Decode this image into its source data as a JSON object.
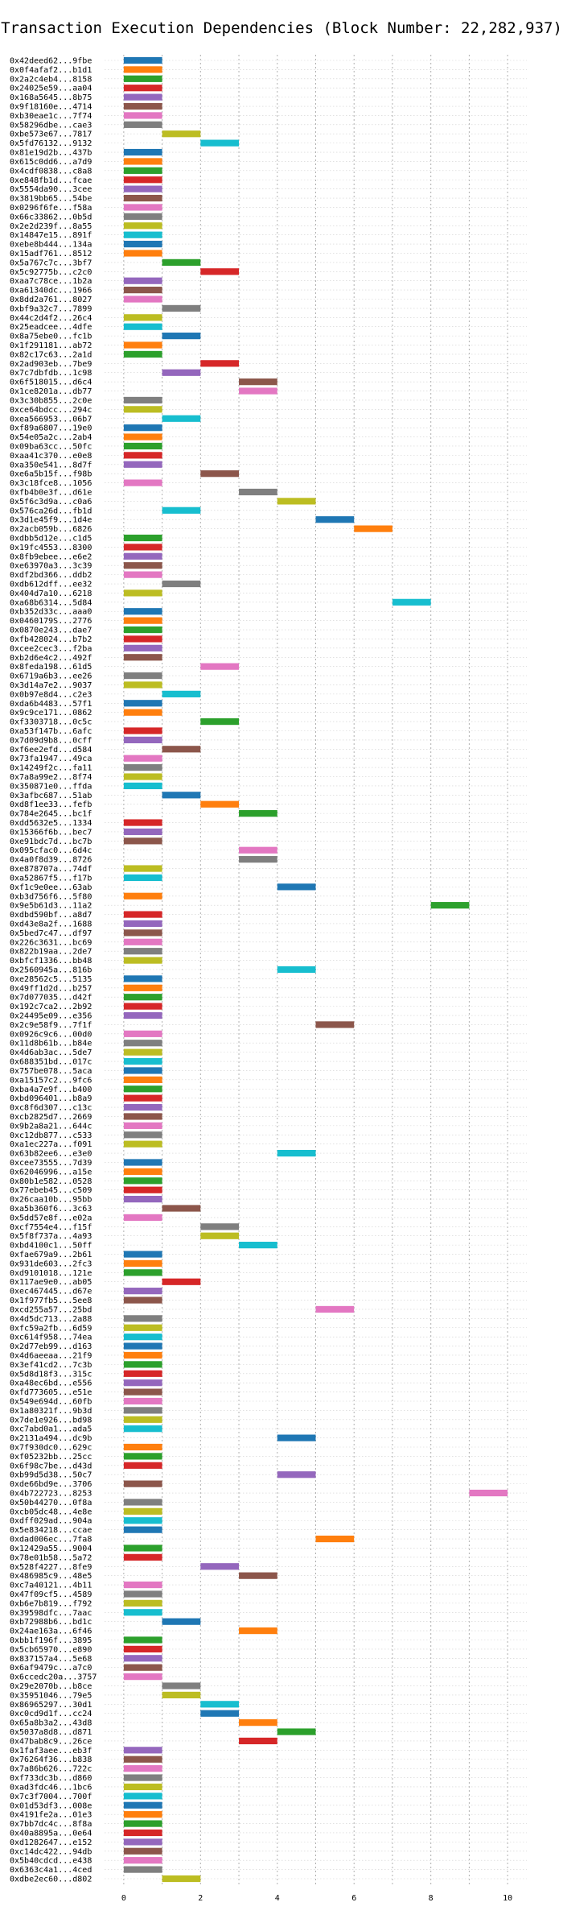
{
  "chart_data": {
    "type": "bar",
    "orientation": "horizontal-gantt",
    "title": "Transaction Execution Dependencies (Block Number: 22,282,937)",
    "xlabel": "",
    "ylabel": "",
    "xlim": [
      -0.5,
      10.5
    ],
    "xticks": [
      0,
      2,
      4,
      6,
      8,
      10
    ],
    "grid": true,
    "palette": [
      "#1f77b4",
      "#ff7f0e",
      "#2ca02c",
      "#d62728",
      "#9467bd",
      "#8c564b",
      "#e377c2",
      "#7f7f7f",
      "#bcbd22",
      "#17becf"
    ],
    "transactions": [
      {
        "hash": "0x42deed62...9fbe",
        "start": 0
      },
      {
        "hash": "0x0f4afaf2...b1d1",
        "start": 0
      },
      {
        "hash": "0x2a2c4eb4...8158",
        "start": 0
      },
      {
        "hash": "0x24025e59...aa04",
        "start": 0
      },
      {
        "hash": "0x168a5645...8b75",
        "start": 0
      },
      {
        "hash": "0x9f18160e...4714",
        "start": 0
      },
      {
        "hash": "0xb30eae1c...7f74",
        "start": 0
      },
      {
        "hash": "0x58296dbe...cae3",
        "start": 0
      },
      {
        "hash": "0xbe573e67...7817",
        "start": 1
      },
      {
        "hash": "0x5fd76132...9132",
        "start": 2
      },
      {
        "hash": "0x81e19d2b...437b",
        "start": 0
      },
      {
        "hash": "0x615c0dd6...a7d9",
        "start": 0
      },
      {
        "hash": "0x4cdf0838...c8a8",
        "start": 0
      },
      {
        "hash": "0xe848fb1d...fcae",
        "start": 0
      },
      {
        "hash": "0x5554da90...3cee",
        "start": 0
      },
      {
        "hash": "0x3819bb65...54be",
        "start": 0
      },
      {
        "hash": "0x0296f6fe...f58a",
        "start": 0
      },
      {
        "hash": "0x66c33862...0b5d",
        "start": 0
      },
      {
        "hash": "0x2e2d239f...8a55",
        "start": 0
      },
      {
        "hash": "0x14847e15...891f",
        "start": 0
      },
      {
        "hash": "0xebe8b444...134a",
        "start": 0
      },
      {
        "hash": "0x15adf761...8512",
        "start": 0
      },
      {
        "hash": "0x5a767c7c...3bf7",
        "start": 1
      },
      {
        "hash": "0x5c92775b...c2c0",
        "start": 2
      },
      {
        "hash": "0xaa7c78ce...1b2a",
        "start": 0
      },
      {
        "hash": "0xa61340dc...1966",
        "start": 0
      },
      {
        "hash": "0x8dd2a761...8027",
        "start": 0
      },
      {
        "hash": "0xbf9a32c7...7899",
        "start": 1
      },
      {
        "hash": "0x44c2d4f2...26c4",
        "start": 0
      },
      {
        "hash": "0x25eadcee...4dfe",
        "start": 0
      },
      {
        "hash": "0x8a75ebe0...fc1b",
        "start": 1
      },
      {
        "hash": "0x1f291181...ab72",
        "start": 0
      },
      {
        "hash": "0x82c17c63...2a1d",
        "start": 0
      },
      {
        "hash": "0x2ad903eb...7be9",
        "start": 2
      },
      {
        "hash": "0x7c7dbfdb...1c98",
        "start": 1
      },
      {
        "hash": "0x6f518015...d6c4",
        "start": 3
      },
      {
        "hash": "0x1ce8201a...db77",
        "start": 3
      },
      {
        "hash": "0x3c30b855...2c0e",
        "start": 0
      },
      {
        "hash": "0xce64bdcc...294c",
        "start": 0
      },
      {
        "hash": "0xea566953...06b7",
        "start": 1
      },
      {
        "hash": "0xf89a6807...19e0",
        "start": 0
      },
      {
        "hash": "0x54e05a2c...2ab4",
        "start": 0
      },
      {
        "hash": "0x09ba63cc...50fc",
        "start": 0
      },
      {
        "hash": "0xaa41c370...e0e8",
        "start": 0
      },
      {
        "hash": "0xa350e541...8d7f",
        "start": 0
      },
      {
        "hash": "0xe6a5b15f...f98b",
        "start": 2
      },
      {
        "hash": "0x3c18fce8...1056",
        "start": 0
      },
      {
        "hash": "0xfb4b0e3f...d61e",
        "start": 3
      },
      {
        "hash": "0x5f6c3d9a...c0a6",
        "start": 4
      },
      {
        "hash": "0x576ca26d...fb1d",
        "start": 1
      },
      {
        "hash": "0x3d1e45f9...1d4e",
        "start": 5
      },
      {
        "hash": "0x2acb059b...6826",
        "start": 6
      },
      {
        "hash": "0xdbb5d12e...c1d5",
        "start": 0
      },
      {
        "hash": "0x19fc4553...8300",
        "start": 0
      },
      {
        "hash": "0x8fb9ebee...e6e2",
        "start": 0
      },
      {
        "hash": "0xe63970a3...3c39",
        "start": 0
      },
      {
        "hash": "0xdf2bd366...ddb2",
        "start": 0
      },
      {
        "hash": "0xdb612dff...ee32",
        "start": 1
      },
      {
        "hash": "0x404d7a10...6218",
        "start": 0
      },
      {
        "hash": "0xa68b6314...5d84",
        "start": 7
      },
      {
        "hash": "0xb352d33c...aaa0",
        "start": 0
      },
      {
        "hash": "0x0460179S...2776",
        "start": 0
      },
      {
        "hash": "0x0870e243...dae7",
        "start": 0
      },
      {
        "hash": "0xfb428024...b7b2",
        "start": 0
      },
      {
        "hash": "0xcee2cec3...f2ba",
        "start": 0
      },
      {
        "hash": "0xb2d6e4c2...492f",
        "start": 0
      },
      {
        "hash": "0x8feda198...61d5",
        "start": 2
      },
      {
        "hash": "0x6719a6b3...ee26",
        "start": 0
      },
      {
        "hash": "0x3d14a7e2...9037",
        "start": 0
      },
      {
        "hash": "0x0b97e8d4...c2e3",
        "start": 1
      },
      {
        "hash": "0xda6b4483...57f1",
        "start": 0
      },
      {
        "hash": "0x9c9ce171...0862",
        "start": 0
      },
      {
        "hash": "0xf3303718...0c5c",
        "start": 2
      },
      {
        "hash": "0xa53f147b...6afc",
        "start": 0
      },
      {
        "hash": "0x7d09d9b8...0cff",
        "start": 0
      },
      {
        "hash": "0xf6ee2efd...d584",
        "start": 1
      },
      {
        "hash": "0x73fa1947...49ca",
        "start": 0
      },
      {
        "hash": "0x14249f2c...fa11",
        "start": 0
      },
      {
        "hash": "0x7a8a99e2...8f74",
        "start": 0
      },
      {
        "hash": "0x350871e0...ffda",
        "start": 0
      },
      {
        "hash": "0x3afbc687...51ab",
        "start": 1
      },
      {
        "hash": "0xd8f1ee33...fefb",
        "start": 2
      },
      {
        "hash": "0x784e2645...bc1f",
        "start": 3
      },
      {
        "hash": "0xdd5632e5...1334",
        "start": 0
      },
      {
        "hash": "0x15366f6b...bec7",
        "start": 0
      },
      {
        "hash": "0xe91bdc7d...bc7b",
        "start": 0
      },
      {
        "hash": "0x095cfac0...6d4c",
        "start": 3
      },
      {
        "hash": "0x4a0f8d39...8726",
        "start": 3
      },
      {
        "hash": "0xe878707a...74df",
        "start": 0
      },
      {
        "hash": "0xa52867f5...f17b",
        "start": 0
      },
      {
        "hash": "0xf1c9e0ee...63ab",
        "start": 4
      },
      {
        "hash": "0xb3d756f6...5f80",
        "start": 0
      },
      {
        "hash": "0x9e5b61d3...11a2",
        "start": 8
      },
      {
        "hash": "0xdbd590bf...a8d7",
        "start": 0
      },
      {
        "hash": "0xd43e8a2f...1688",
        "start": 0
      },
      {
        "hash": "0x5bed7c47...df97",
        "start": 0
      },
      {
        "hash": "0x226c3631...bc69",
        "start": 0
      },
      {
        "hash": "0x822b19aa...2de7",
        "start": 0
      },
      {
        "hash": "0xbfcf1336...bb48",
        "start": 0
      },
      {
        "hash": "0x2560945a...816b",
        "start": 4
      },
      {
        "hash": "0xe28562c5...5135",
        "start": 0
      },
      {
        "hash": "0x49ff1d2d...b257",
        "start": 0
      },
      {
        "hash": "0x7d077035...d42f",
        "start": 0
      },
      {
        "hash": "0x192c7ca2...2b92",
        "start": 0
      },
      {
        "hash": "0x24495e09...e356",
        "start": 0
      },
      {
        "hash": "0x2c9e58f9...7f1f",
        "start": 5
      },
      {
        "hash": "0x0926c9c6...00d0",
        "start": 0
      },
      {
        "hash": "0x11d8b61b...b84e",
        "start": 0
      },
      {
        "hash": "0x4d6ab3ac...5de7",
        "start": 0
      },
      {
        "hash": "0x688351bd...017c",
        "start": 0
      },
      {
        "hash": "0x757be078...5aca",
        "start": 0
      },
      {
        "hash": "0xa15157c2...9fc6",
        "start": 0
      },
      {
        "hash": "0xba4a7e9f...b400",
        "start": 0
      },
      {
        "hash": "0xbd096401...b8a9",
        "start": 0
      },
      {
        "hash": "0xc8f6d307...c13c",
        "start": 0
      },
      {
        "hash": "0xcb2825d7...2669",
        "start": 0
      },
      {
        "hash": "0x9b2a8a21...644c",
        "start": 0
      },
      {
        "hash": "0xc12db877...c533",
        "start": 0
      },
      {
        "hash": "0xa1ec227a...f091",
        "start": 0
      },
      {
        "hash": "0x63b82ee6...e3e0",
        "start": 4
      },
      {
        "hash": "0xcee73555...7d39",
        "start": 0
      },
      {
        "hash": "0x62046996...a15e",
        "start": 0
      },
      {
        "hash": "0x80b1e582...0528",
        "start": 0
      },
      {
        "hash": "0x77ebeb45...c509",
        "start": 0
      },
      {
        "hash": "0x26caa10b...95bb",
        "start": 0
      },
      {
        "hash": "0xa5b360f6...3c63",
        "start": 1
      },
      {
        "hash": "0x5dd57e8f...e02a",
        "start": 0
      },
      {
        "hash": "0xcf7554e4...f15f",
        "start": 2
      },
      {
        "hash": "0x5f8f737a...4a93",
        "start": 2
      },
      {
        "hash": "0xbd4100c1...50ff",
        "start": 3
      },
      {
        "hash": "0xfae679a9...2b61",
        "start": 0
      },
      {
        "hash": "0x931de603...2fc3",
        "start": 0
      },
      {
        "hash": "0xd9101018...121e",
        "start": 0
      },
      {
        "hash": "0x117ae9e0...ab05",
        "start": 1
      },
      {
        "hash": "0xec467445...d67e",
        "start": 0
      },
      {
        "hash": "0x1f977fb5...5ee8",
        "start": 0
      },
      {
        "hash": "0xcd255a57...25bd",
        "start": 5
      },
      {
        "hash": "0x4d5dc713...2a88",
        "start": 0
      },
      {
        "hash": "0xfc59a2fb...6d59",
        "start": 0
      },
      {
        "hash": "0xc614f958...74ea",
        "start": 0
      },
      {
        "hash": "0x2d77eb99...d163",
        "start": 0
      },
      {
        "hash": "0x4d6aeeaa...21f9",
        "start": 0
      },
      {
        "hash": "0x3ef41cd2...7c3b",
        "start": 0
      },
      {
        "hash": "0x5d8d18f3...315c",
        "start": 0
      },
      {
        "hash": "0xa48ec6bd...e556",
        "start": 0
      },
      {
        "hash": "0xfd773605...e51e",
        "start": 0
      },
      {
        "hash": "0x549e694d...60fb",
        "start": 0
      },
      {
        "hash": "0x1a80321f...9b3d",
        "start": 0
      },
      {
        "hash": "0x7de1e926...bd98",
        "start": 0
      },
      {
        "hash": "0xc7abd0a1...ada5",
        "start": 0
      },
      {
        "hash": "0x2131a494...dc9b",
        "start": 4
      },
      {
        "hash": "0x7f930dc0...629c",
        "start": 0
      },
      {
        "hash": "0xf05232bb...25cc",
        "start": 0
      },
      {
        "hash": "0x6f98c7be...d43d",
        "start": 0
      },
      {
        "hash": "0xb99d5d38...50c7",
        "start": 4
      },
      {
        "hash": "0xde66bd9e...3706",
        "start": 0
      },
      {
        "hash": "0x4b722723...8253",
        "start": 9
      },
      {
        "hash": "0x50b44270...0f8a",
        "start": 0
      },
      {
        "hash": "0xcb05dc48...4e8e",
        "start": 0
      },
      {
        "hash": "0xdff029ad...904a",
        "start": 0
      },
      {
        "hash": "0x5e834218...ccae",
        "start": 0
      },
      {
        "hash": "0xdad006ec...7fa8",
        "start": 5
      },
      {
        "hash": "0x12429a55...9004",
        "start": 0
      },
      {
        "hash": "0x78e01b58...5a72",
        "start": 0
      },
      {
        "hash": "0x528f4227...8fe9",
        "start": 2
      },
      {
        "hash": "0x486985c9...48e5",
        "start": 3
      },
      {
        "hash": "0xc7a40121...4b11",
        "start": 0
      },
      {
        "hash": "0x47f09cf5...4589",
        "start": 0
      },
      {
        "hash": "0xb6e7b819...f792",
        "start": 0
      },
      {
        "hash": "0x39598dfc...7aac",
        "start": 0
      },
      {
        "hash": "0xb72988b6...bd1c",
        "start": 1
      },
      {
        "hash": "0x24ae163a...6f46",
        "start": 3
      },
      {
        "hash": "0xbb1f196f...3895",
        "start": 0
      },
      {
        "hash": "0x5cb65970...e890",
        "start": 0
      },
      {
        "hash": "0x837157a4...5e68",
        "start": 0
      },
      {
        "hash": "0x6af9479c...a7c0",
        "start": 0
      },
      {
        "hash": "0x6ccedc20a...3757",
        "start": 0
      },
      {
        "hash": "0x29e2070b...b8ce",
        "start": 1
      },
      {
        "hash": "0x35951046...79e5",
        "start": 1
      },
      {
        "hash": "0x86965297...30d1",
        "start": 2
      },
      {
        "hash": "0xc0cd9d1f...cc24",
        "start": 2
      },
      {
        "hash": "0x65a8b3a2...43d8",
        "start": 3
      },
      {
        "hash": "0x5037a8d8...d871",
        "start": 4
      },
      {
        "hash": "0x47bab8c9...26ce",
        "start": 3
      },
      {
        "hash": "0x1faf3aee...eb3f",
        "start": 0
      },
      {
        "hash": "0x76264f36...b838",
        "start": 0
      },
      {
        "hash": "0x7a86b626...722c",
        "start": 0
      },
      {
        "hash": "0xf733dc3b...d860",
        "start": 0
      },
      {
        "hash": "0xad3fdc46...1bc6",
        "start": 0
      },
      {
        "hash": "0x7c3f7004...700f",
        "start": 0
      },
      {
        "hash": "0x01d53df3...008e",
        "start": 0
      },
      {
        "hash": "0x4191fe2a...01e3",
        "start": 0
      },
      {
        "hash": "0x7bb7dc4c...8f8a",
        "start": 0
      },
      {
        "hash": "0x40a8895a...0e64",
        "start": 0
      },
      {
        "hash": "0xd1282647...e152",
        "start": 0
      },
      {
        "hash": "0xc14dc422...94db",
        "start": 0
      },
      {
        "hash": "0x5b40cdcd...e438",
        "start": 0
      },
      {
        "hash": "0x6363c4a1...4ced",
        "start": 0
      },
      {
        "hash": "0xdbe2ec60...d802",
        "start": 1
      }
    ]
  }
}
